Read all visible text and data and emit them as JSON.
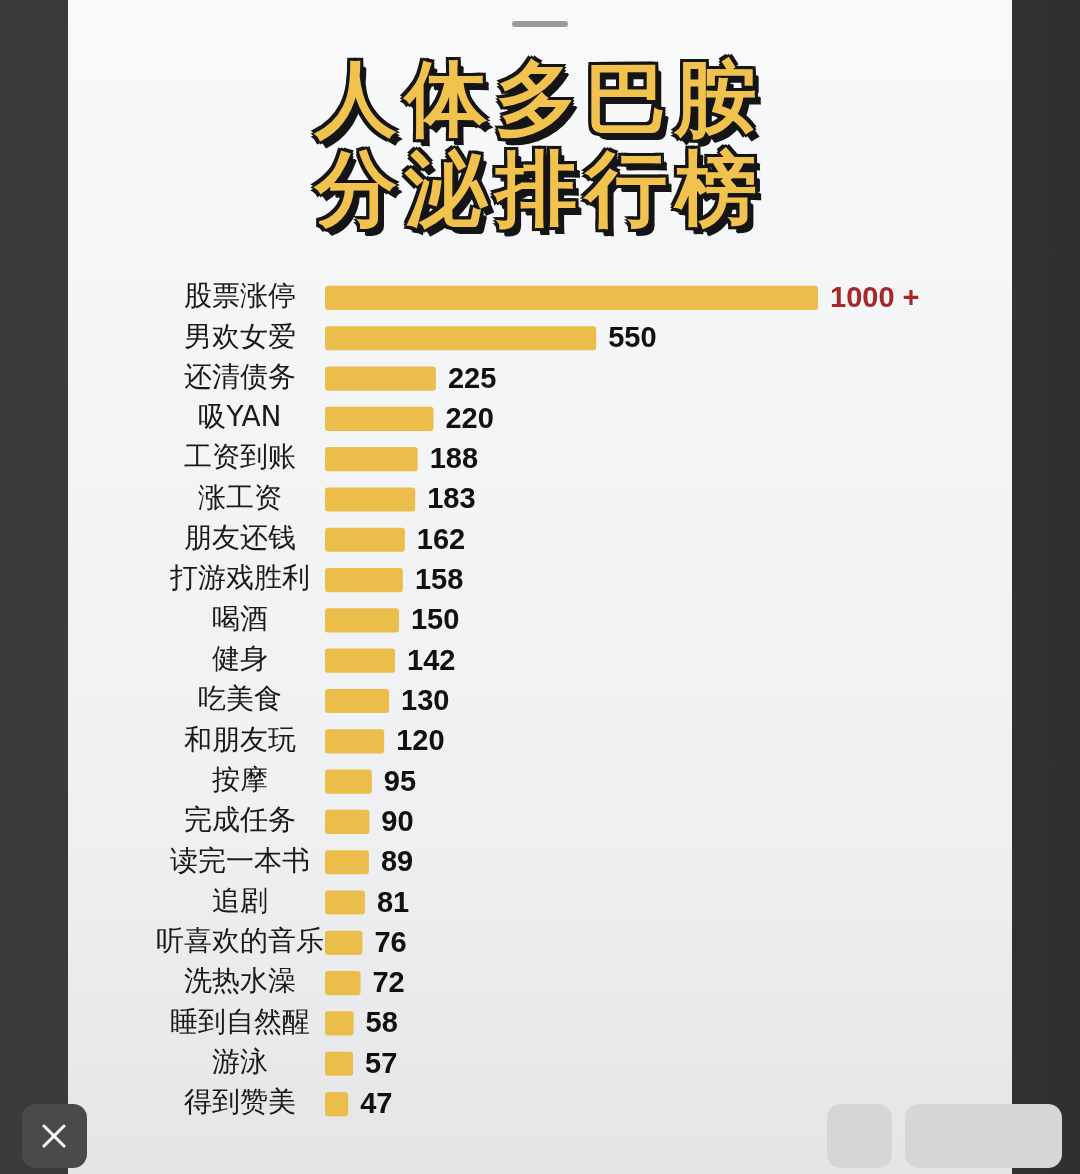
{
  "chart_data": {
    "type": "bar",
    "orientation": "horizontal",
    "title": "人体多巴胺分泌排行榜",
    "categories": [
      "股票涨停",
      "男欢女爱",
      "还清债务",
      "吸YAN",
      "工资到账",
      "涨工资",
      "朋友还钱",
      "打游戏胜利",
      "喝酒",
      "健身",
      "吃美食",
      "和朋友玩",
      "按摩",
      "完成任务",
      "读完一本书",
      "追剧",
      "听喜欢的音乐",
      "洗热水澡",
      "睡到自然醒",
      "游泳",
      "得到赞美"
    ],
    "values": [
      1000,
      550,
      225,
      220,
      188,
      183,
      162,
      158,
      150,
      142,
      130,
      120,
      95,
      90,
      89,
      81,
      76,
      72,
      58,
      57,
      47
    ],
    "value_labels": [
      "1000 +",
      "550",
      "225",
      "220",
      "188",
      "183",
      "162",
      "158",
      "150",
      "142",
      "130",
      "120",
      "95",
      "90",
      "89",
      "81",
      "76",
      "72",
      "58",
      "57",
      "47"
    ],
    "color": "#ebbd4a",
    "tick_labels": "y"
  }
}
